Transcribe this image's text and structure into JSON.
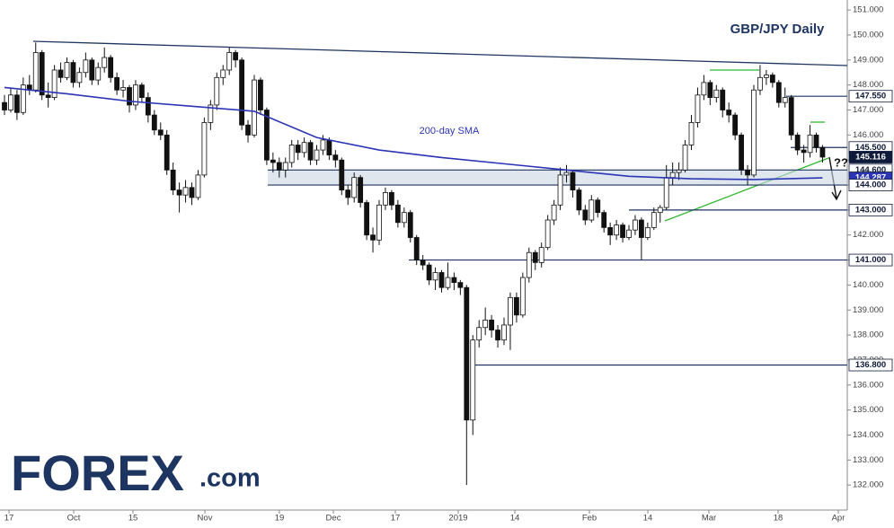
{
  "chart_data": {
    "type": "candlestick",
    "title": "GBP/JPY Daily",
    "ylim": [
      131,
      151.4
    ],
    "yticks": [
      {
        "value": 132,
        "label": "132.000"
      },
      {
        "value": 133,
        "label": "133.000"
      },
      {
        "value": 134,
        "label": "134.000"
      },
      {
        "value": 135,
        "label": "135.000"
      },
      {
        "value": 136,
        "label": "136.000"
      },
      {
        "value": 137,
        "label": "137.000"
      },
      {
        "value": 138,
        "label": "138.000"
      },
      {
        "value": 139,
        "label": "139.000"
      },
      {
        "value": 140,
        "label": "140.000"
      },
      {
        "value": 141,
        "label": "141.000"
      },
      {
        "value": 142,
        "label": "142.000"
      },
      {
        "value": 143,
        "label": "143.000"
      },
      {
        "value": 144,
        "label": "144.000"
      },
      {
        "value": 145,
        "label": "145.000"
      },
      {
        "value": 146,
        "label": "146.000"
      },
      {
        "value": 147,
        "label": "147.000"
      },
      {
        "value": 148,
        "label": "148.000"
      },
      {
        "value": 149,
        "label": "149.000"
      },
      {
        "value": 150,
        "label": "150.000"
      },
      {
        "value": 151,
        "label": "151.000"
      }
    ],
    "xticks": [
      "17",
      "Oct",
      "15",
      "Nov",
      "19",
      "Dec",
      "17",
      "2019",
      "14",
      "Feb",
      "14",
      "Mar",
      "18",
      "Apr"
    ],
    "candles": [
      [
        147.3,
        147.6,
        146.8,
        147.0
      ],
      [
        147.0,
        147.9,
        146.9,
        147.6
      ],
      [
        147.6,
        147.8,
        146.6,
        146.9
      ],
      [
        146.9,
        148.3,
        146.8,
        148.0
      ],
      [
        148.0,
        148.4,
        147.6,
        147.8
      ],
      [
        147.8,
        149.7,
        147.7,
        149.3
      ],
      [
        149.3,
        149.4,
        147.4,
        147.6
      ],
      [
        147.6,
        148.1,
        147.1,
        147.5
      ],
      [
        147.5,
        148.8,
        147.4,
        148.6
      ],
      [
        148.6,
        148.9,
        148.1,
        148.3
      ],
      [
        148.3,
        149.1,
        148.2,
        148.9
      ],
      [
        148.9,
        149.0,
        147.9,
        148.1
      ],
      [
        148.1,
        148.7,
        147.9,
        148.5
      ],
      [
        148.5,
        149.3,
        148.3,
        149.0
      ],
      [
        149.0,
        149.1,
        148.0,
        148.2
      ],
      [
        148.2,
        148.9,
        148.0,
        148.7
      ],
      [
        148.7,
        149.5,
        148.5,
        149.1
      ],
      [
        149.1,
        149.2,
        148.1,
        148.3
      ],
      [
        148.3,
        148.5,
        147.6,
        147.8
      ],
      [
        147.8,
        148.2,
        147.5,
        147.9
      ],
      [
        147.9,
        148.0,
        146.9,
        147.2
      ],
      [
        147.2,
        148.2,
        147.0,
        148.0
      ],
      [
        148.0,
        148.1,
        147.3,
        147.5
      ],
      [
        147.5,
        147.7,
        146.5,
        146.8
      ],
      [
        146.8,
        147.0,
        146.0,
        146.2
      ],
      [
        146.2,
        146.5,
        145.8,
        146.0
      ],
      [
        146.0,
        146.2,
        144.4,
        144.6
      ],
      [
        144.6,
        144.9,
        143.6,
        143.8
      ],
      [
        143.8,
        144.1,
        142.9,
        143.6
      ],
      [
        143.6,
        144.2,
        143.3,
        143.9
      ],
      [
        143.9,
        144.1,
        143.2,
        143.5
      ],
      [
        143.5,
        144.6,
        143.4,
        144.4
      ],
      [
        144.4,
        146.7,
        144.3,
        146.5
      ],
      [
        146.5,
        147.4,
        146.2,
        147.2
      ],
      [
        147.2,
        148.5,
        147.0,
        148.3
      ],
      [
        148.3,
        148.8,
        148.0,
        148.6
      ],
      [
        148.6,
        149.5,
        148.4,
        149.3
      ],
      [
        149.3,
        149.4,
        148.7,
        149.0
      ],
      [
        149.0,
        149.1,
        146.2,
        146.4
      ],
      [
        146.4,
        146.6,
        145.7,
        146.0
      ],
      [
        146.0,
        148.4,
        145.9,
        148.2
      ],
      [
        148.2,
        148.3,
        146.8,
        147.0
      ],
      [
        147.0,
        147.1,
        144.8,
        145.0
      ],
      [
        145.0,
        145.3,
        144.5,
        144.9
      ],
      [
        144.9,
        145.1,
        144.3,
        144.6
      ],
      [
        144.6,
        145.1,
        144.3,
        144.9
      ],
      [
        144.9,
        145.8,
        144.7,
        145.6
      ],
      [
        145.6,
        145.8,
        145.0,
        145.3
      ],
      [
        145.3,
        145.9,
        145.1,
        145.7
      ],
      [
        145.7,
        145.8,
        144.8,
        145.0
      ],
      [
        145.0,
        145.6,
        144.8,
        145.4
      ],
      [
        145.4,
        146.0,
        145.2,
        145.8
      ],
      [
        145.8,
        145.9,
        145.0,
        145.2
      ],
      [
        145.2,
        145.4,
        144.7,
        145.0
      ],
      [
        145.0,
        145.1,
        143.6,
        143.8
      ],
      [
        143.8,
        144.0,
        143.2,
        143.5
      ],
      [
        143.5,
        144.5,
        143.3,
        144.3
      ],
      [
        144.3,
        144.4,
        143.1,
        143.3
      ],
      [
        143.3,
        143.4,
        141.8,
        142.0
      ],
      [
        142.0,
        142.3,
        141.3,
        141.8
      ],
      [
        141.8,
        143.4,
        141.6,
        143.2
      ],
      [
        143.2,
        143.9,
        143.0,
        143.7
      ],
      [
        143.7,
        143.8,
        143.0,
        143.2
      ],
      [
        143.2,
        143.4,
        142.3,
        142.5
      ],
      [
        142.5,
        143.1,
        142.3,
        142.9
      ],
      [
        142.9,
        143.0,
        141.7,
        141.9
      ],
      [
        141.9,
        142.0,
        140.8,
        141.0
      ],
      [
        141.0,
        141.2,
        140.6,
        140.8
      ],
      [
        140.8,
        140.9,
        140.0,
        140.2
      ],
      [
        140.2,
        140.7,
        139.8,
        140.5
      ],
      [
        140.5,
        140.6,
        139.7,
        139.9
      ],
      [
        139.9,
        140.9,
        139.8,
        140.3
      ],
      [
        140.3,
        140.5,
        139.8,
        140.1
      ],
      [
        140.1,
        140.2,
        139.6,
        139.9
      ],
      [
        139.9,
        140.0,
        132.0,
        134.6
      ],
      [
        134.6,
        138.0,
        134.0,
        137.8
      ],
      [
        137.8,
        138.6,
        137.5,
        138.3
      ],
      [
        138.3,
        139.1,
        138.0,
        138.6
      ],
      [
        138.6,
        138.8,
        137.9,
        138.2
      ],
      [
        138.2,
        138.4,
        137.5,
        137.8
      ],
      [
        137.8,
        138.7,
        137.6,
        138.4
      ],
      [
        138.4,
        139.7,
        137.4,
        139.5
      ],
      [
        139.5,
        139.7,
        138.5,
        138.8
      ],
      [
        138.8,
        140.5,
        138.7,
        140.3
      ],
      [
        140.3,
        141.5,
        140.1,
        141.3
      ],
      [
        141.3,
        141.4,
        140.6,
        140.9
      ],
      [
        140.9,
        141.7,
        140.7,
        141.5
      ],
      [
        141.5,
        142.8,
        141.4,
        142.6
      ],
      [
        142.6,
        143.4,
        142.4,
        143.2
      ],
      [
        143.2,
        144.7,
        143.0,
        144.4
      ],
      [
        144.4,
        144.8,
        144.1,
        144.5
      ],
      [
        144.5,
        144.6,
        143.5,
        143.8
      ],
      [
        143.8,
        143.9,
        142.8,
        143.0
      ],
      [
        143.0,
        143.2,
        142.4,
        142.6
      ],
      [
        142.6,
        143.6,
        142.5,
        143.4
      ],
      [
        143.4,
        143.5,
        142.7,
        142.9
      ],
      [
        142.9,
        143.0,
        142.1,
        142.3
      ],
      [
        142.3,
        142.5,
        141.6,
        142.0
      ],
      [
        142.0,
        142.6,
        141.8,
        142.4
      ],
      [
        142.4,
        142.5,
        141.7,
        141.9
      ],
      [
        141.9,
        142.4,
        141.8,
        142.2
      ],
      [
        142.2,
        142.8,
        142.0,
        142.6
      ],
      [
        142.6,
        142.7,
        141.0,
        141.9
      ],
      [
        141.9,
        142.5,
        141.8,
        142.3
      ],
      [
        142.3,
        143.1,
        142.2,
        142.9
      ],
      [
        142.9,
        143.2,
        142.5,
        143.1
      ],
      [
        143.1,
        144.8,
        143.0,
        144.3
      ],
      [
        144.3,
        144.9,
        144.0,
        144.5
      ],
      [
        144.5,
        144.9,
        144.2,
        144.6
      ],
      [
        144.6,
        145.8,
        144.5,
        145.6
      ],
      [
        145.6,
        146.8,
        145.4,
        146.5
      ],
      [
        146.5,
        147.9,
        146.3,
        147.6
      ],
      [
        147.6,
        148.4,
        147.4,
        148.1
      ],
      [
        148.1,
        148.2,
        147.2,
        147.5
      ],
      [
        147.5,
        148.0,
        147.3,
        147.8
      ],
      [
        147.8,
        147.9,
        146.7,
        147.0
      ],
      [
        147.0,
        147.3,
        146.5,
        146.8
      ],
      [
        146.8,
        146.9,
        145.8,
        146.0
      ],
      [
        146.0,
        146.1,
        144.4,
        144.6
      ],
      [
        144.6,
        144.8,
        144.0,
        144.4
      ],
      [
        144.4,
        148.0,
        144.3,
        147.8
      ],
      [
        147.8,
        148.8,
        147.6,
        148.3
      ],
      [
        148.3,
        148.6,
        148.0,
        148.4
      ],
      [
        148.4,
        148.5,
        147.9,
        148.1
      ],
      [
        148.1,
        148.2,
        147.1,
        147.3
      ],
      [
        147.3,
        147.9,
        147.1,
        147.5
      ],
      [
        147.5,
        147.6,
        145.8,
        146.0
      ],
      [
        146.0,
        146.1,
        145.2,
        145.4
      ],
      [
        145.4,
        145.6,
        144.9,
        145.3
      ],
      [
        145.3,
        146.4,
        145.1,
        146.0
      ],
      [
        146.0,
        146.1,
        145.3,
        145.5
      ],
      [
        145.5,
        145.6,
        144.9,
        145.116
      ]
    ],
    "sma": {
      "name": "200-day SMA",
      "color": "#2b35b5",
      "x": [
        0,
        10,
        20,
        30,
        40,
        50,
        60,
        70,
        80,
        90,
        100,
        110,
        120,
        131
      ],
      "values": [
        147.9,
        147.65,
        147.35,
        147.15,
        146.95,
        145.9,
        145.4,
        145.1,
        144.85,
        144.6,
        144.35,
        144.25,
        144.22,
        144.287
      ]
    },
    "levels": [
      {
        "value": 147.55,
        "label": "147.550"
      },
      {
        "value": 145.5,
        "label": "145.500"
      },
      {
        "value": 145.116,
        "label": "145.116"
      },
      {
        "value": 144.6,
        "label": "144.600"
      },
      {
        "value": 144.287,
        "label": "144.287"
      },
      {
        "value": 144.0,
        "label": "144.000"
      },
      {
        "value": 143.0,
        "label": "143.000"
      },
      {
        "value": 141.0,
        "label": "141.000"
      },
      {
        "value": 136.8,
        "label": "136.800"
      }
    ],
    "annotation": "??",
    "logo": {
      "brand": "FOREX",
      "suffix": ".com"
    }
  }
}
